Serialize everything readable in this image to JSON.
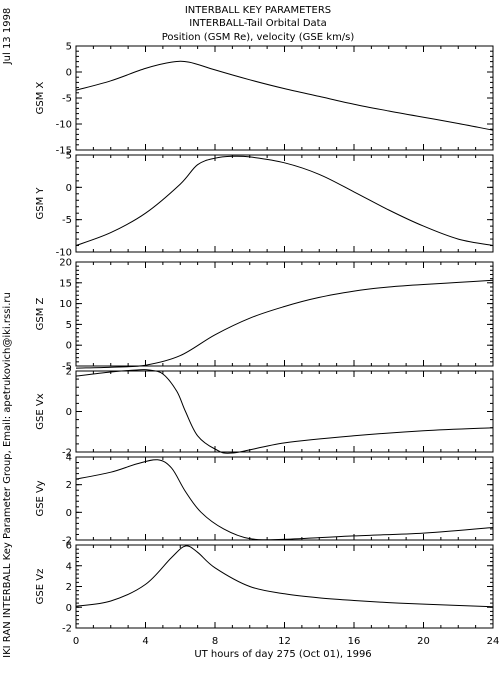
{
  "header": {
    "line1": "INTERBALL KEY PARAMETERS",
    "line2": "INTERBALL-Tail Orbital Data",
    "line3": "Position (GSM Re), velocity (GSE km/s)"
  },
  "side_date": "Jul 13 1998",
  "side_credit": "IKI RAN INTERBALL Key Parameter Group, Email: apetrukovich@iki.rssi.ru",
  "chart_data": [
    {
      "type": "line",
      "ylabel": "GSM X",
      "ylim": [
        -15,
        5
      ],
      "yticks": [
        -15,
        -10,
        -5,
        0,
        5
      ],
      "x": [
        0,
        2,
        4,
        5.5,
        6.5,
        8,
        10,
        12,
        14,
        16,
        18,
        20,
        22,
        24
      ],
      "values": [
        -3.5,
        -1.7,
        0.7,
        1.9,
        1.9,
        0.4,
        -1.5,
        -3.2,
        -4.7,
        -6.2,
        -7.5,
        -8.7,
        -9.9,
        -11.2
      ],
      "xlim": [
        0,
        24
      ]
    },
    {
      "type": "line",
      "ylabel": "GSM Y",
      "ylim": [
        -10,
        5
      ],
      "yticks": [
        -10,
        -5,
        0,
        5
      ],
      "x": [
        0,
        2,
        4,
        6,
        7,
        8,
        9,
        10,
        12,
        14,
        16,
        18,
        20,
        22,
        24
      ],
      "values": [
        -9.0,
        -7.0,
        -4.0,
        0.5,
        3.5,
        4.5,
        4.8,
        4.7,
        3.8,
        2.0,
        -0.7,
        -3.5,
        -6.0,
        -8.0,
        -9.0
      ],
      "xlim": [
        0,
        24
      ]
    },
    {
      "type": "line",
      "ylabel": "GSM Z",
      "ylim": [
        -5,
        20
      ],
      "yticks": [
        -5,
        0,
        5,
        10,
        15,
        20
      ],
      "x": [
        0,
        2,
        4,
        6,
        8,
        10,
        12,
        14,
        16,
        18,
        20,
        22,
        24
      ],
      "values": [
        -5.5,
        -5.3,
        -4.8,
        -2.5,
        2.5,
        6.5,
        9.3,
        11.5,
        13.0,
        14.0,
        14.6,
        15.1,
        15.6
      ],
      "xlim": [
        0,
        24
      ]
    },
    {
      "type": "line",
      "ylabel": "GSE Vx",
      "ylim": [
        -2,
        2
      ],
      "yticks": [
        -2,
        0,
        2
      ],
      "x": [
        0,
        2,
        3.5,
        4.2,
        5,
        5.8,
        6.3,
        7,
        8,
        9,
        12,
        16,
        20,
        24
      ],
      "values": [
        1.75,
        1.95,
        2.05,
        2.05,
        1.85,
        1.0,
        0.0,
        -1.2,
        -1.85,
        -2.05,
        -1.55,
        -1.2,
        -0.95,
        -0.8
      ],
      "xlim": [
        0,
        24
      ]
    },
    {
      "type": "line",
      "ylabel": "GSE Vy",
      "ylim": [
        -2,
        4
      ],
      "yticks": [
        -2,
        0,
        2,
        4
      ],
      "x": [
        0,
        2,
        3.5,
        4.7,
        5.5,
        6.3,
        7.2,
        8.5,
        10,
        12,
        16,
        20,
        24
      ],
      "values": [
        2.4,
        2.9,
        3.5,
        3.8,
        3.2,
        1.5,
        0.0,
        -1.2,
        -1.9,
        -1.95,
        -1.7,
        -1.5,
        -1.1
      ],
      "xlim": [
        0,
        24
      ]
    },
    {
      "type": "line",
      "ylabel": "GSE Vz",
      "ylim": [
        -2,
        6
      ],
      "yticks": [
        -2,
        0,
        2,
        4,
        6
      ],
      "x": [
        0,
        2,
        4,
        5.5,
        6.3,
        7,
        8,
        10,
        12,
        14,
        16,
        18,
        20,
        24
      ],
      "values": [
        0.1,
        0.6,
        2.2,
        4.8,
        5.9,
        5.3,
        3.8,
        2.0,
        1.3,
        0.9,
        0.65,
        0.45,
        0.3,
        0.05
      ],
      "xlim": [
        0,
        24
      ]
    }
  ],
  "xaxis": {
    "ticks": [
      0,
      4,
      8,
      12,
      16,
      20,
      24
    ],
    "label": "UT hours of day 275 (Oct 01), 1996"
  }
}
